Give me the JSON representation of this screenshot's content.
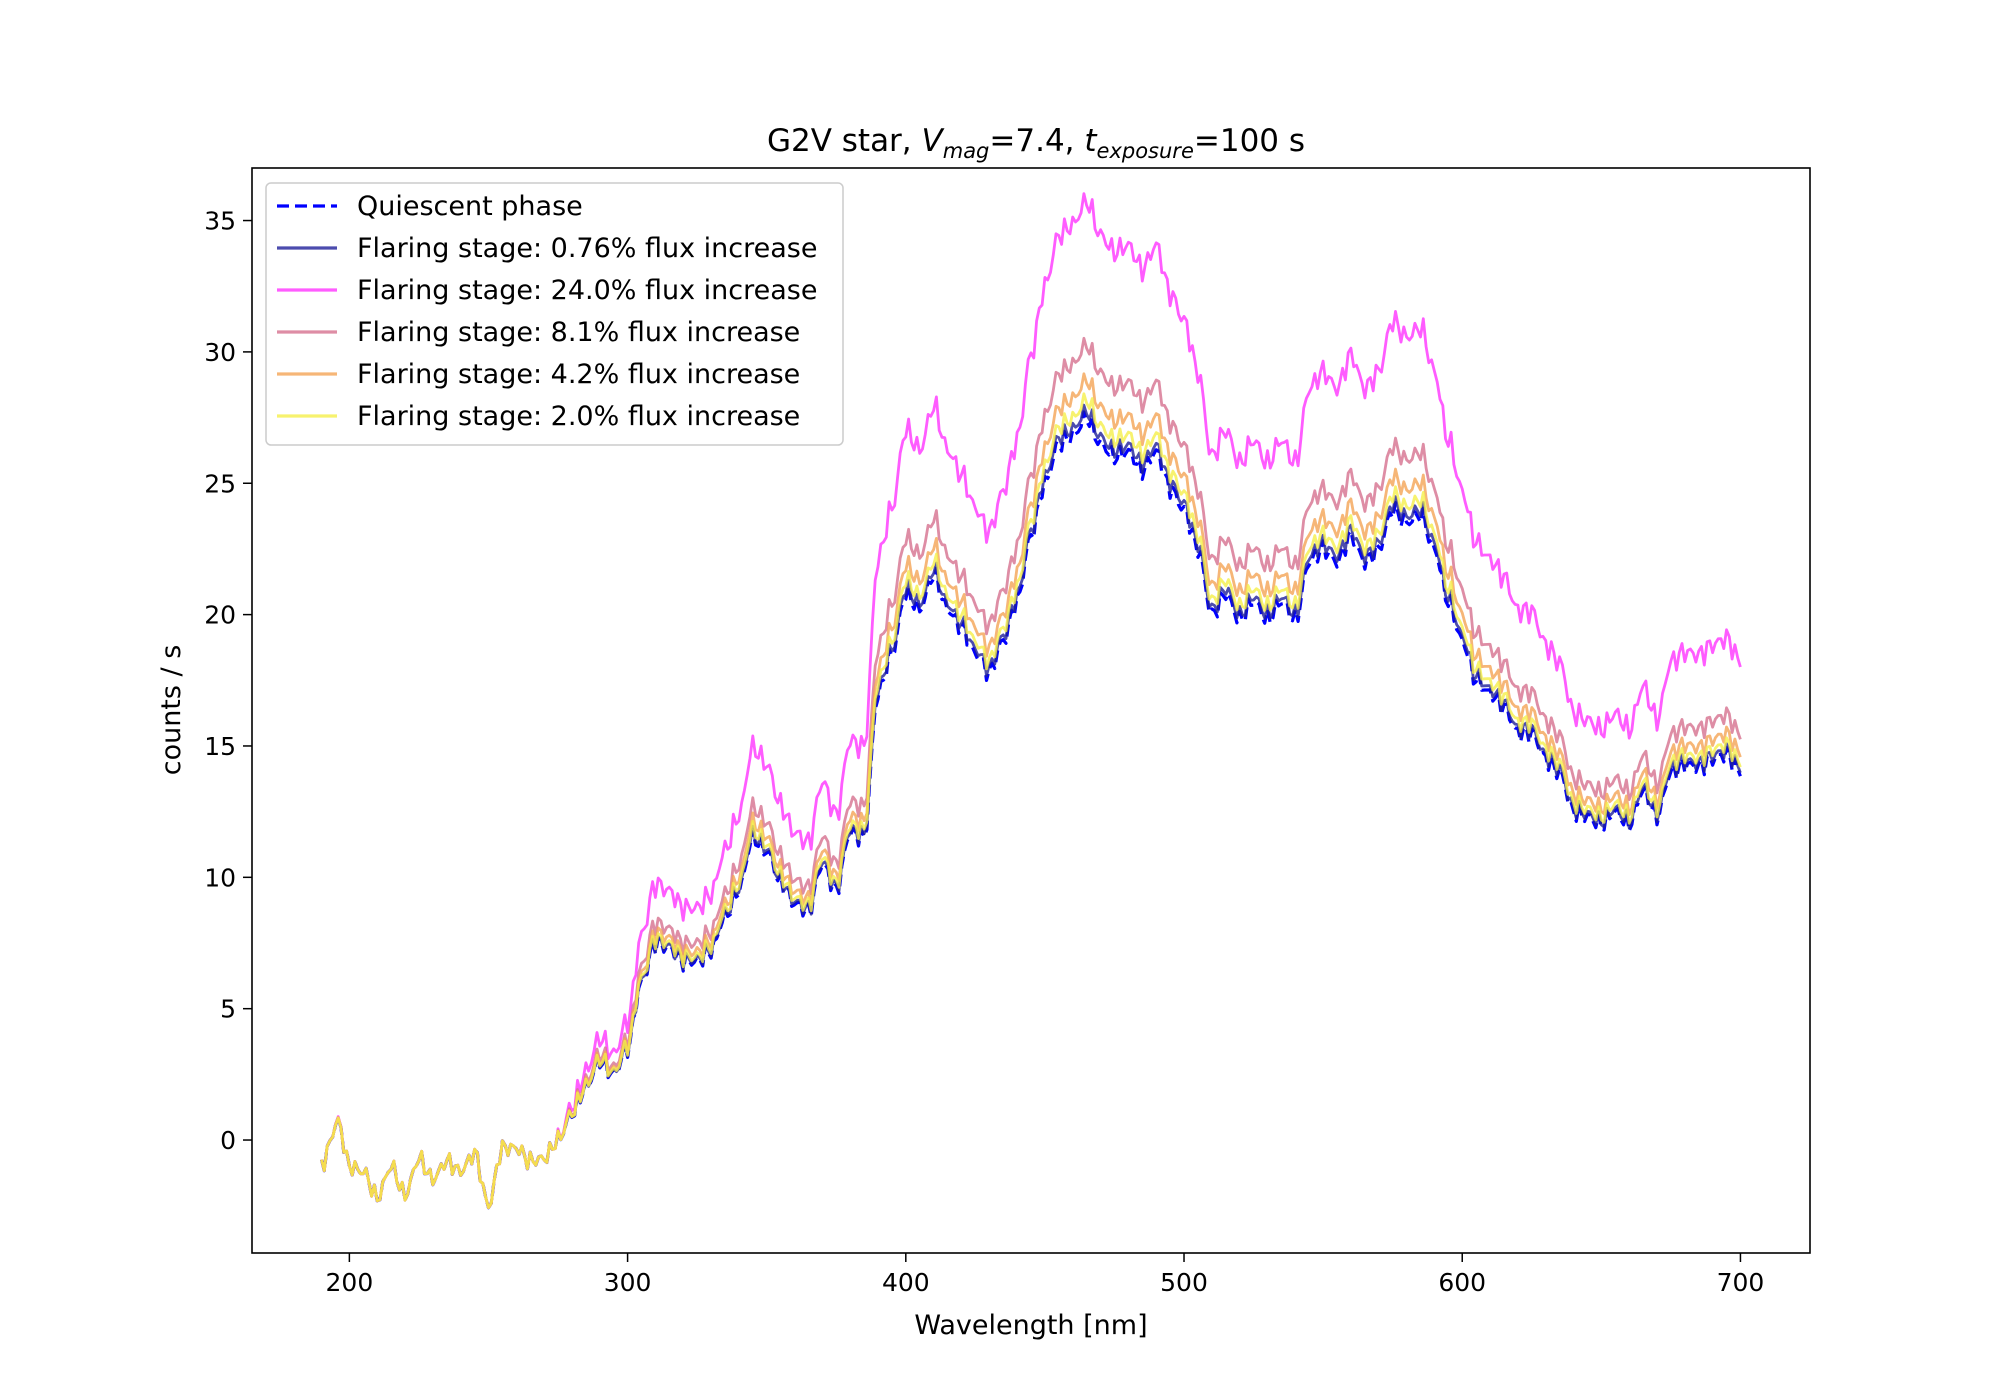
{
  "chart_data": {
    "type": "line",
    "title": {
      "prefix": "G2V star, ",
      "v": "V",
      "v_sub": "mag",
      "v_value": "=7.4, ",
      "t": "t",
      "t_sub": "exposure",
      "t_value": "=100 s"
    },
    "xlabel": "Wavelength [nm]",
    "ylabel": "counts / s",
    "xlim": [
      165,
      725
    ],
    "ylim": [
      -4.3,
      37
    ],
    "xticks": [
      200,
      300,
      400,
      500,
      600,
      700
    ],
    "yticks": [
      0,
      5,
      10,
      15,
      20,
      25,
      30,
      35
    ],
    "grid": false,
    "legend_position": "upper-left",
    "quiescent_x": [
      190,
      196,
      200,
      205,
      210,
      215,
      220,
      225,
      230,
      235,
      240,
      245,
      250,
      255,
      260,
      265,
      270,
      275,
      280,
      285,
      290,
      295,
      300,
      305,
      310,
      315,
      320,
      325,
      330,
      335,
      340,
      345,
      350,
      355,
      360,
      365,
      370,
      375,
      380,
      385,
      390,
      395,
      400,
      405,
      410,
      415,
      420,
      425,
      430,
      435,
      440,
      445,
      450,
      455,
      460,
      465,
      470,
      475,
      480,
      485,
      490,
      495,
      500,
      505,
      510,
      515,
      520,
      525,
      530,
      535,
      540,
      545,
      550,
      555,
      560,
      565,
      570,
      575,
      580,
      585,
      590,
      595,
      600,
      605,
      610,
      615,
      620,
      625,
      630,
      635,
      640,
      645,
      650,
      655,
      660,
      665,
      670,
      675,
      680,
      685,
      690,
      695,
      700
    ],
    "quiescent_y": [
      -0.9,
      0.7,
      -1.0,
      -1.2,
      -2.2,
      -1.0,
      -2.1,
      -0.7,
      -1.5,
      -0.8,
      -1.2,
      -0.5,
      -2.5,
      -0.3,
      -0.3,
      -0.8,
      -0.7,
      0.0,
      1.0,
      2.0,
      3.0,
      2.5,
      3.5,
      6.0,
      7.5,
      7.3,
      6.8,
      6.8,
      7.2,
      8.5,
      9.5,
      11.5,
      11.0,
      9.8,
      9.0,
      8.7,
      10.5,
      9.5,
      11.7,
      11.5,
      17.0,
      18.5,
      20.8,
      20.2,
      21.5,
      20.2,
      19.5,
      18.5,
      17.8,
      19.0,
      20.5,
      23.0,
      25.0,
      26.5,
      26.8,
      27.5,
      26.5,
      26.0,
      26.2,
      25.5,
      26.2,
      24.8,
      24.0,
      22.5,
      20.0,
      20.8,
      19.8,
      20.5,
      19.8,
      20.5,
      19.8,
      22.0,
      22.5,
      22.0,
      23.0,
      22.0,
      22.5,
      24.0,
      23.5,
      23.8,
      22.5,
      20.5,
      19.0,
      17.5,
      17.0,
      16.5,
      15.5,
      15.5,
      14.5,
      14.0,
      12.5,
      12.3,
      12.0,
      12.5,
      12.0,
      13.3,
      12.3,
      14.0,
      14.3,
      14.2,
      14.5,
      14.7,
      14.0
    ],
    "series": [
      {
        "name": "Quiescent phase",
        "color": "#0000ff",
        "dashed": true,
        "flux_increase": 0
      },
      {
        "name": "Flaring stage: 0.76% flux increase",
        "color": "#1f1f9a",
        "dashed": false,
        "flux_increase": 0.0076
      },
      {
        "name": "Flaring stage: 24.0% flux increase",
        "color": "#ff33ff",
        "dashed": false,
        "flux_increase": 0.24
      },
      {
        "name": "Flaring stage: 8.1% flux increase",
        "color": "#d6708f",
        "dashed": false,
        "flux_increase": 0.081
      },
      {
        "name": "Flaring stage: 4.2% flux increase",
        "color": "#f4a455",
        "dashed": false,
        "flux_increase": 0.042
      },
      {
        "name": "Flaring stage: 2.0% flux increase",
        "color": "#f5ef4a",
        "dashed": false,
        "flux_increase": 0.02
      }
    ]
  }
}
